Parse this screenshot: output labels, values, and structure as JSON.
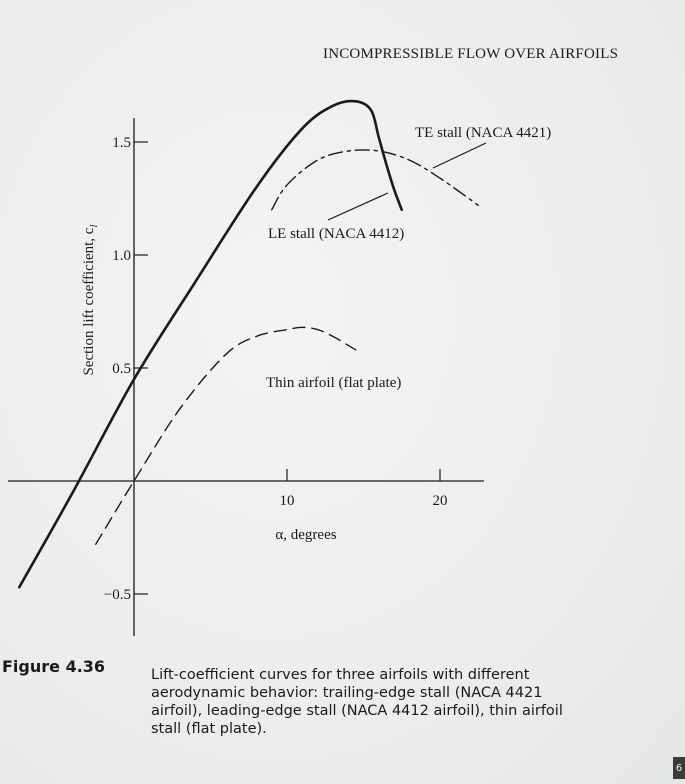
{
  "page": {
    "running_header": "INCOMPRESSIBLE FLOW OVER AIRFOILS",
    "page_number_fragment": "6"
  },
  "figure": {
    "label": "Figure 4.36",
    "caption": "Lift-coefficient curves for three airfoils with different aerodynamic behavior: trailing-edge stall (NACA 4421 airfoil), leading-edge stall (NACA 4412 airfoil), thin airfoil stall (flat plate)."
  },
  "chart_data": {
    "type": "line",
    "title": "",
    "xlabel": "α, degrees",
    "ylabel": "Section lift coefficient, c",
    "ylabel_subscript": "l",
    "xlim": [
      -8.5,
      23
    ],
    "ylim": [
      -0.78,
      1.78
    ],
    "x_ticks": [
      10,
      20
    ],
    "x_tick_labels": [
      "10",
      "20"
    ],
    "y_ticks": [
      -0.5,
      0.5,
      1.0,
      1.5
    ],
    "y_tick_labels": [
      "−0.5",
      "0.5",
      "1.0",
      "1.5"
    ],
    "grid": false,
    "series": [
      {
        "name": "LE stall (NACA 4412)",
        "style": "solid",
        "color": "#1a1a1a",
        "x": [
          -7.5,
          -4,
          0,
          4,
          8,
          11,
          13,
          14.5,
          15.5,
          16,
          16.5,
          17,
          17.5
        ],
        "y": [
          -0.47,
          -0.05,
          0.45,
          0.88,
          1.3,
          1.56,
          1.66,
          1.68,
          1.64,
          1.52,
          1.4,
          1.29,
          1.2
        ]
      },
      {
        "name": "TE stall (NACA 4421)",
        "style": "dashdot",
        "color": "#1a1a1a",
        "x": [
          9,
          10,
          12,
          14,
          16,
          18,
          20,
          22.5
        ],
        "y": [
          1.2,
          1.31,
          1.42,
          1.46,
          1.46,
          1.42,
          1.34,
          1.22
        ]
      },
      {
        "name": "Thin airfoil (flat plate)",
        "style": "dashed",
        "color": "#1a1a1a",
        "x": [
          -2.5,
          0,
          3,
          6,
          8,
          10,
          11,
          12,
          13,
          14.5
        ],
        "y": [
          -0.28,
          0.0,
          0.32,
          0.56,
          0.64,
          0.67,
          0.68,
          0.67,
          0.64,
          0.58
        ]
      }
    ],
    "annotations": [
      {
        "text": "TE stall (NACA 4421)",
        "series": 1
      },
      {
        "text": "LE stall (NACA 4412)",
        "series": 0
      },
      {
        "text": "Thin airfoil (flat plate)",
        "series": 2
      }
    ]
  }
}
